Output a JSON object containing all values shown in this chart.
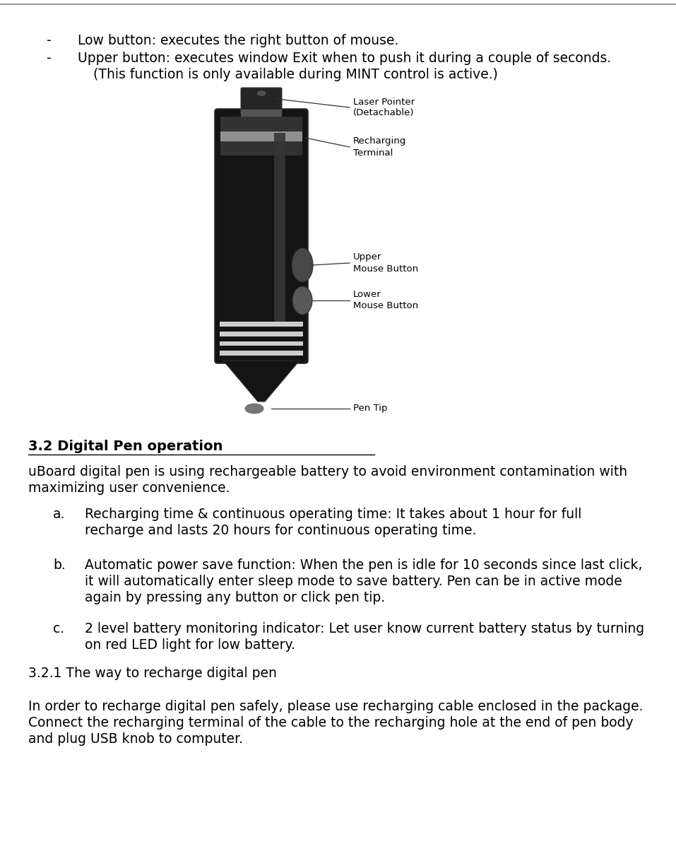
{
  "bg_color": "#ffffff",
  "top_line_color": "#888888",
  "bullet1": "Low button: executes the right button of mouse.",
  "bullet2_line1": "Upper button: executes window Exit when to push it during a couple of seconds.",
  "bullet2_line2": "(This function is only available during MINT control is active.)",
  "section_prefix": "3.2 ",
  "section_text": "Digital Pen operation",
  "intro_line1": "uBoard digital pen is using rechargeable battery to avoid environment contamination with",
  "intro_line2": "maximizing user convenience.",
  "item_a_label": "a.",
  "item_a_line1": "Recharging time & continuous operating time: It takes about 1 hour for full",
  "item_a_line2": "recharge and lasts 20 hours for continuous operating time.",
  "item_b_label": "b.",
  "item_b_line1": "Automatic power save function: When the pen is idle for 10 seconds since last click,",
  "item_b_line2": "it will automatically enter sleep mode to save battery. Pen can be in active mode",
  "item_b_line3": "again by pressing any button or click pen tip.",
  "item_c_label": "c.",
  "item_c_line1": "2 level battery monitoring indicator: Let user know current battery status by turning",
  "item_c_line2": "on red LED light for low battery.",
  "subsection_title": "3.2.1 The way to recharge digital pen",
  "footer_line1": "In order to recharge digital pen safely, please use recharging cable enclosed in the package.",
  "footer_line2": "Connect the recharging terminal of the cable to the recharging hole at the end of pen body",
  "footer_line3": "and plug USB knob to computer.",
  "label_laser": "Laser Pointer\n(Detachable)",
  "label_recharging": "Recharging\nTerminal",
  "label_upper": "Upper\nMouse Button",
  "label_lower": "Lower\nMouse Button",
  "label_tip": "Pen Tip",
  "pen_dark": "#141414",
  "pen_mid": "#3a3a3a",
  "pen_gray": "#888888",
  "pen_light_gray": "#cccccc",
  "pen_btn": "#555555",
  "line_color": "#333333"
}
